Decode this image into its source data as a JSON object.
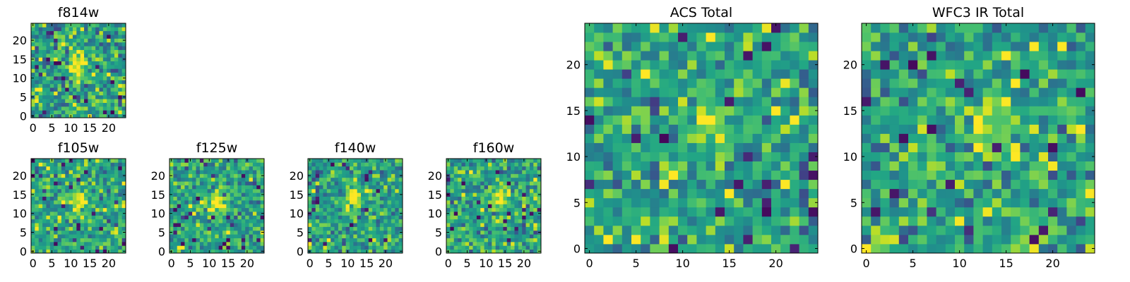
{
  "figure": {
    "colormap": "viridis",
    "background": "#ffffff"
  },
  "chart_data": [
    {
      "id": "f814w",
      "type": "heatmap",
      "title": "f814w",
      "size": 25,
      "xticks": [
        0,
        5,
        10,
        15,
        20
      ],
      "yticks": [
        0,
        5,
        10,
        15,
        20
      ],
      "xlim": [
        -0.5,
        24.5
      ],
      "ylim": [
        -0.5,
        24.5
      ],
      "noise_scale": 0.35,
      "peak": {
        "x": 12,
        "y": 13,
        "amplitude": 1.0,
        "sigma": 2.0
      },
      "seed": 11
    },
    {
      "id": "f105w",
      "type": "heatmap",
      "title": "f105w",
      "size": 25,
      "xticks": [
        0,
        5,
        10,
        15,
        20
      ],
      "yticks": [
        0,
        5,
        10,
        15,
        20
      ],
      "xlim": [
        -0.5,
        24.5
      ],
      "ylim": [
        -0.5,
        24.5
      ],
      "noise_scale": 0.3,
      "peak": {
        "x": 12,
        "y": 13,
        "amplitude": 0.9,
        "sigma": 2.2
      },
      "seed": 23
    },
    {
      "id": "f125w",
      "type": "heatmap",
      "title": "f125w",
      "size": 25,
      "xticks": [
        0,
        5,
        10,
        15,
        20
      ],
      "yticks": [
        0,
        5,
        10,
        15,
        20
      ],
      "xlim": [
        -0.5,
        24.5
      ],
      "ylim": [
        -0.5,
        24.5
      ],
      "noise_scale": 0.3,
      "peak": {
        "x": 12,
        "y": 13,
        "amplitude": 0.9,
        "sigma": 2.2
      },
      "seed": 37
    },
    {
      "id": "f140w",
      "type": "heatmap",
      "title": "f140w",
      "size": 25,
      "xticks": [
        0,
        5,
        10,
        15,
        20
      ],
      "yticks": [
        0,
        5,
        10,
        15,
        20
      ],
      "xlim": [
        -0.5,
        24.5
      ],
      "ylim": [
        -0.5,
        24.5
      ],
      "noise_scale": 0.32,
      "peak": {
        "x": 12,
        "y": 14,
        "amplitude": 0.9,
        "sigma": 2.0
      },
      "seed": 41
    },
    {
      "id": "f160w",
      "type": "heatmap",
      "title": "f160w",
      "size": 25,
      "xticks": [
        0,
        5,
        10,
        15,
        20
      ],
      "yticks": [
        0,
        5,
        10,
        15,
        20
      ],
      "xlim": [
        -0.5,
        24.5
      ],
      "ylim": [
        -0.5,
        24.5
      ],
      "noise_scale": 0.32,
      "peak": {
        "x": 13,
        "y": 14,
        "amplitude": 0.9,
        "sigma": 2.0
      },
      "seed": 53
    },
    {
      "id": "acs-total",
      "type": "heatmap",
      "title": "ACS Total",
      "size": 25,
      "xticks": [
        0,
        5,
        10,
        15,
        20
      ],
      "yticks": [
        0,
        5,
        10,
        15,
        20
      ],
      "xlim": [
        -0.5,
        24.5
      ],
      "ylim": [
        -0.5,
        24.5
      ],
      "noise_scale": 0.33,
      "peak": {
        "x": 13,
        "y": 13,
        "amplitude": 0.8,
        "sigma": 1.6
      },
      "seed": 67
    },
    {
      "id": "wfc3-ir-total",
      "type": "heatmap",
      "title": "WFC3 IR Total",
      "size": 25,
      "xticks": [
        0,
        5,
        10,
        15,
        20
      ],
      "yticks": [
        0,
        5,
        10,
        15,
        20
      ],
      "xlim": [
        -0.5,
        24.5
      ],
      "ylim": [
        -0.5,
        24.5
      ],
      "noise_scale": 0.35,
      "peak": {
        "x": 13,
        "y": 13,
        "amplitude": 0.6,
        "sigma": 2.0
      },
      "seed": 79
    }
  ]
}
